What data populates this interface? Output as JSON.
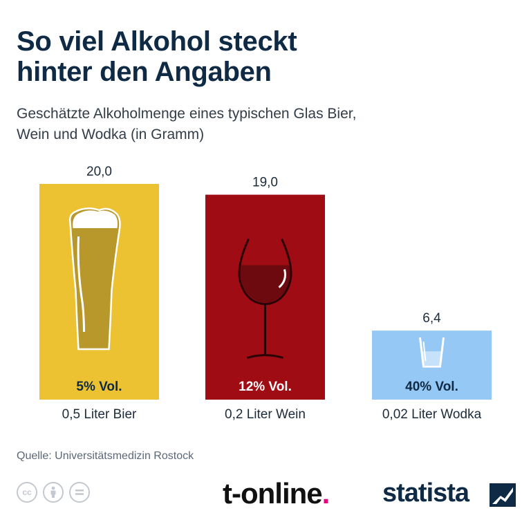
{
  "header": {
    "title": "So viel Alkohol steckt\nhinter den Angaben",
    "subtitle": "Geschätzte Alkoholmenge eines typischen Glas Bier,\nWein und Wodka (in Gramm)"
  },
  "chart_data": {
    "type": "bar",
    "title": "So viel Alkohol steckt hinter den Angaben",
    "subtitle": "Geschätzte Alkoholmenge eines typischen Glas Bier, Wein und Wodka (in Gramm)",
    "categories": [
      "0,5 Liter Bier",
      "0,2 Liter Wein",
      "0,02 Liter Wodka"
    ],
    "values": [
      20.0,
      19.0,
      6.4
    ],
    "value_labels": [
      "20,0",
      "19,0",
      "6,4"
    ],
    "bar_labels": [
      "5% Vol.",
      "12% Vol.",
      "40% Vol."
    ],
    "colors": [
      "#ecc232",
      "#a00c13",
      "#96c8f5"
    ],
    "bar_label_colors": [
      "#0f2a45",
      "#ffffff",
      "#0f2a45"
    ],
    "icons": [
      "beer-glass-icon",
      "wine-glass-icon",
      "shot-glass-icon"
    ],
    "ylim": [
      0,
      20
    ],
    "grid": false,
    "xlabel": "",
    "ylabel": ""
  },
  "footer": {
    "source": "Quelle: Universitätsmedizin Rostock",
    "tonline_text": "t-online",
    "tonline_dot": ".",
    "statista_text": "statista",
    "cc_icons": [
      "creative-commons-icon",
      "attribution-icon",
      "no-derivatives-icon"
    ]
  }
}
